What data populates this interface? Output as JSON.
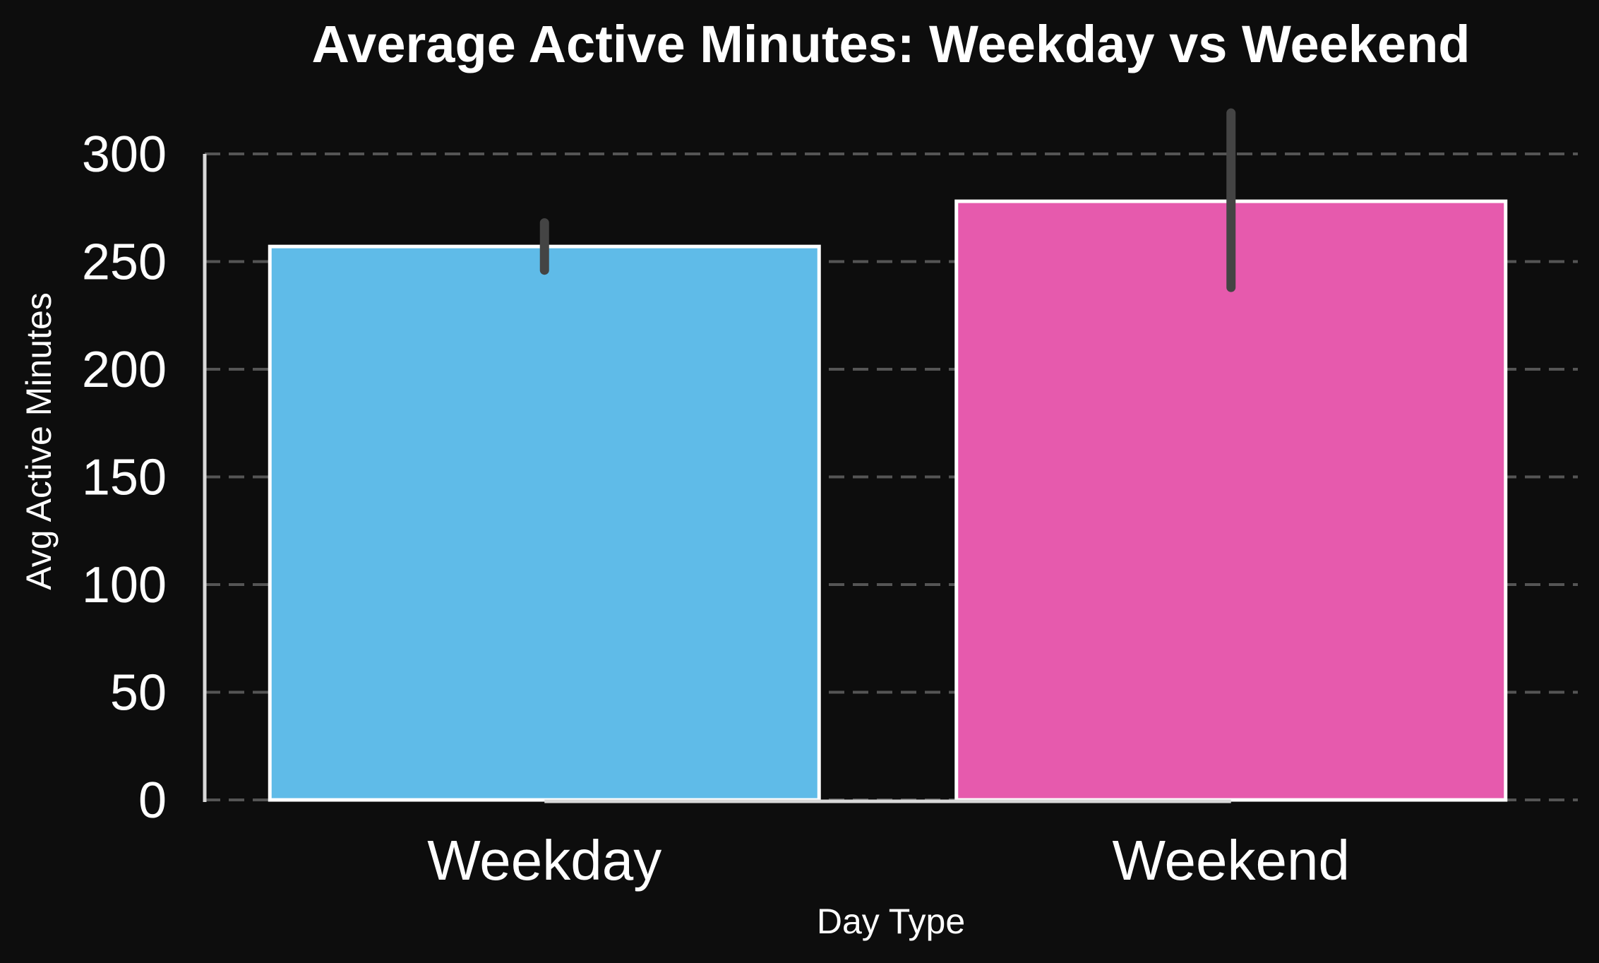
{
  "chart_data": {
    "type": "bar",
    "title": "Average Active Minutes: Weekday vs Weekend",
    "xlabel": "Day Type",
    "ylabel": "Avg Active Minutes",
    "categories": [
      "Weekday",
      "Weekend"
    ],
    "values": [
      257,
      278
    ],
    "error_bars": [
      [
        246,
        268
      ],
      [
        238,
        319
      ]
    ],
    "colors": [
      "#5fbbe8",
      "#e65aad"
    ],
    "ylim": [
      0,
      300
    ],
    "yticks": [
      0,
      50,
      100,
      150,
      200,
      250,
      300
    ],
    "grid": true,
    "legend": "none"
  }
}
